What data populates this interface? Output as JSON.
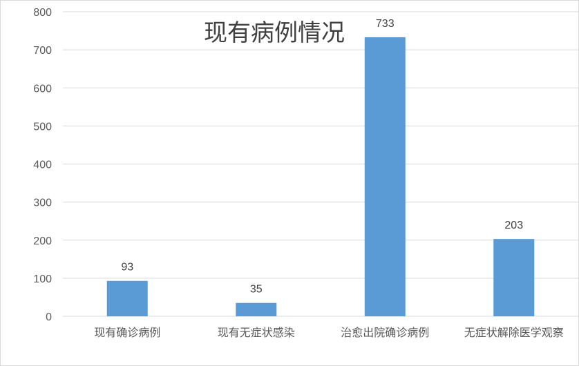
{
  "chart_data": {
    "type": "bar",
    "title": "现有病例情况",
    "categories": [
      "现有确诊病例",
      "现有无症状感染",
      "治愈出院确诊病例",
      "无症状解除医学观察"
    ],
    "values": [
      93,
      35,
      733,
      203
    ],
    "data_labels": [
      "93",
      "35",
      "733",
      "203"
    ],
    "ylim": [
      0,
      800
    ],
    "yticks": [
      "0",
      "100",
      "200",
      "300",
      "400",
      "500",
      "600",
      "700",
      "800"
    ],
    "grid": true,
    "legend": "none",
    "bar_color": "#5b9bd5",
    "grid_color": "#d9d9d9"
  }
}
